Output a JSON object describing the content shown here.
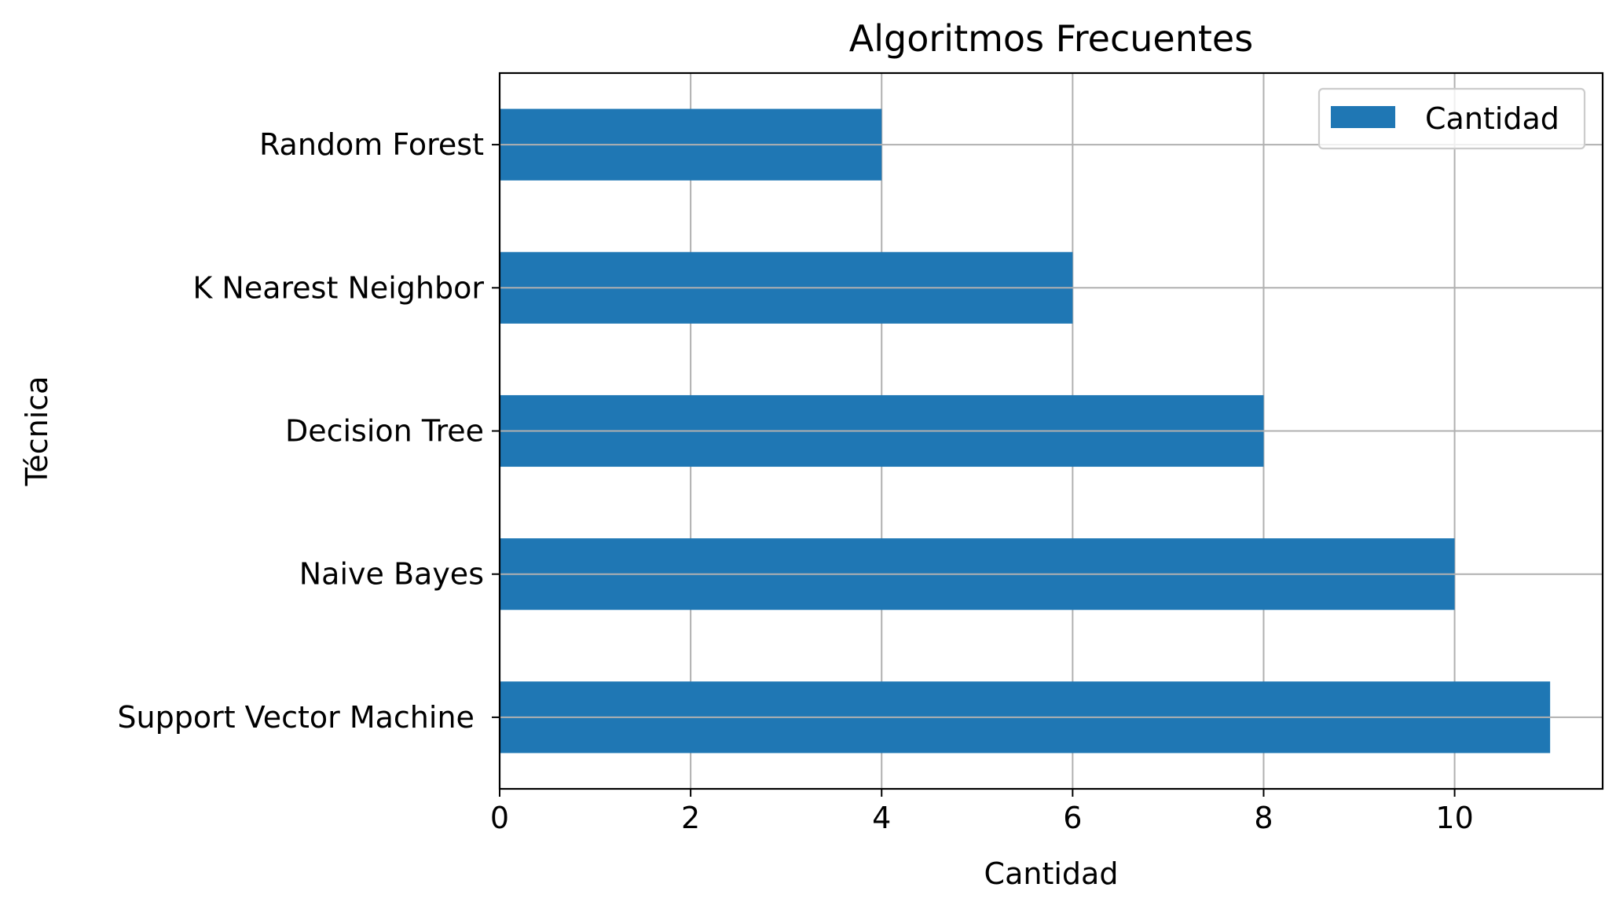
{
  "chart_data": {
    "type": "bar",
    "orientation": "horizontal",
    "title": "Algoritmos Frecuentes",
    "xlabel": "Cantidad",
    "ylabel": "Técnica",
    "categories": [
      "Support Vector Machine ",
      "Naive Bayes",
      "Decision Tree",
      "K Nearest Neighbor",
      "Random Forest"
    ],
    "series": [
      {
        "name": "Cantidad",
        "values": [
          11,
          10,
          8,
          6,
          4
        ],
        "color": "#1f77b4"
      }
    ],
    "x_ticks": [
      0,
      2,
      4,
      6,
      8,
      10
    ],
    "xlim": [
      0,
      11.55
    ],
    "grid": true,
    "legend": {
      "position": "top-right"
    }
  }
}
